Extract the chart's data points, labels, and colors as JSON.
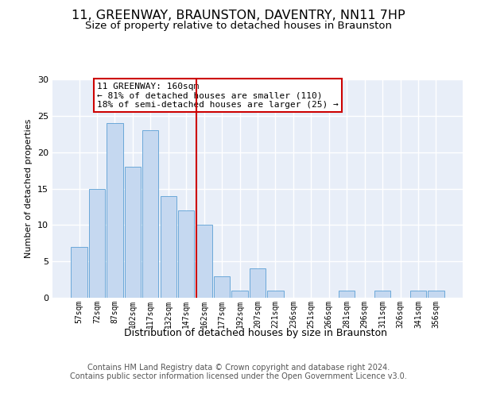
{
  "title_line1": "11, GREENWAY, BRAUNSTON, DAVENTRY, NN11 7HP",
  "title_line2": "Size of property relative to detached houses in Braunston",
  "xlabel": "Distribution of detached houses by size in Braunston",
  "ylabel": "Number of detached properties",
  "categories": [
    "57sqm",
    "72sqm",
    "87sqm",
    "102sqm",
    "117sqm",
    "132sqm",
    "147sqm",
    "162sqm",
    "177sqm",
    "192sqm",
    "207sqm",
    "221sqm",
    "236sqm",
    "251sqm",
    "266sqm",
    "281sqm",
    "296sqm",
    "311sqm",
    "326sqm",
    "341sqm",
    "356sqm"
  ],
  "values": [
    7,
    15,
    24,
    18,
    23,
    14,
    12,
    10,
    3,
    1,
    4,
    1,
    0,
    0,
    0,
    1,
    0,
    1,
    0,
    1,
    1
  ],
  "bar_color": "#c5d8f0",
  "bar_edge_color": "#5a9fd4",
  "vline_x_index": 7,
  "vline_color": "#cc0000",
  "annotation_line1": "11 GREENWAY: 160sqm",
  "annotation_line2": "← 81% of detached houses are smaller (110)",
  "annotation_line3": "18% of semi-detached houses are larger (25) →",
  "annotation_box_facecolor": "white",
  "annotation_box_edgecolor": "#cc0000",
  "ylim": [
    0,
    30
  ],
  "yticks": [
    0,
    5,
    10,
    15,
    20,
    25,
    30
  ],
  "bg_color": "#e8eef8",
  "grid_color": "white",
  "footer_text": "Contains HM Land Registry data © Crown copyright and database right 2024.\nContains public sector information licensed under the Open Government Licence v3.0.",
  "title_fontsize": 11.5,
  "subtitle_fontsize": 9.5,
  "annotation_fontsize": 8,
  "footer_fontsize": 7,
  "ylabel_fontsize": 8,
  "xlabel_fontsize": 9,
  "xtick_fontsize": 7,
  "ytick_fontsize": 8
}
